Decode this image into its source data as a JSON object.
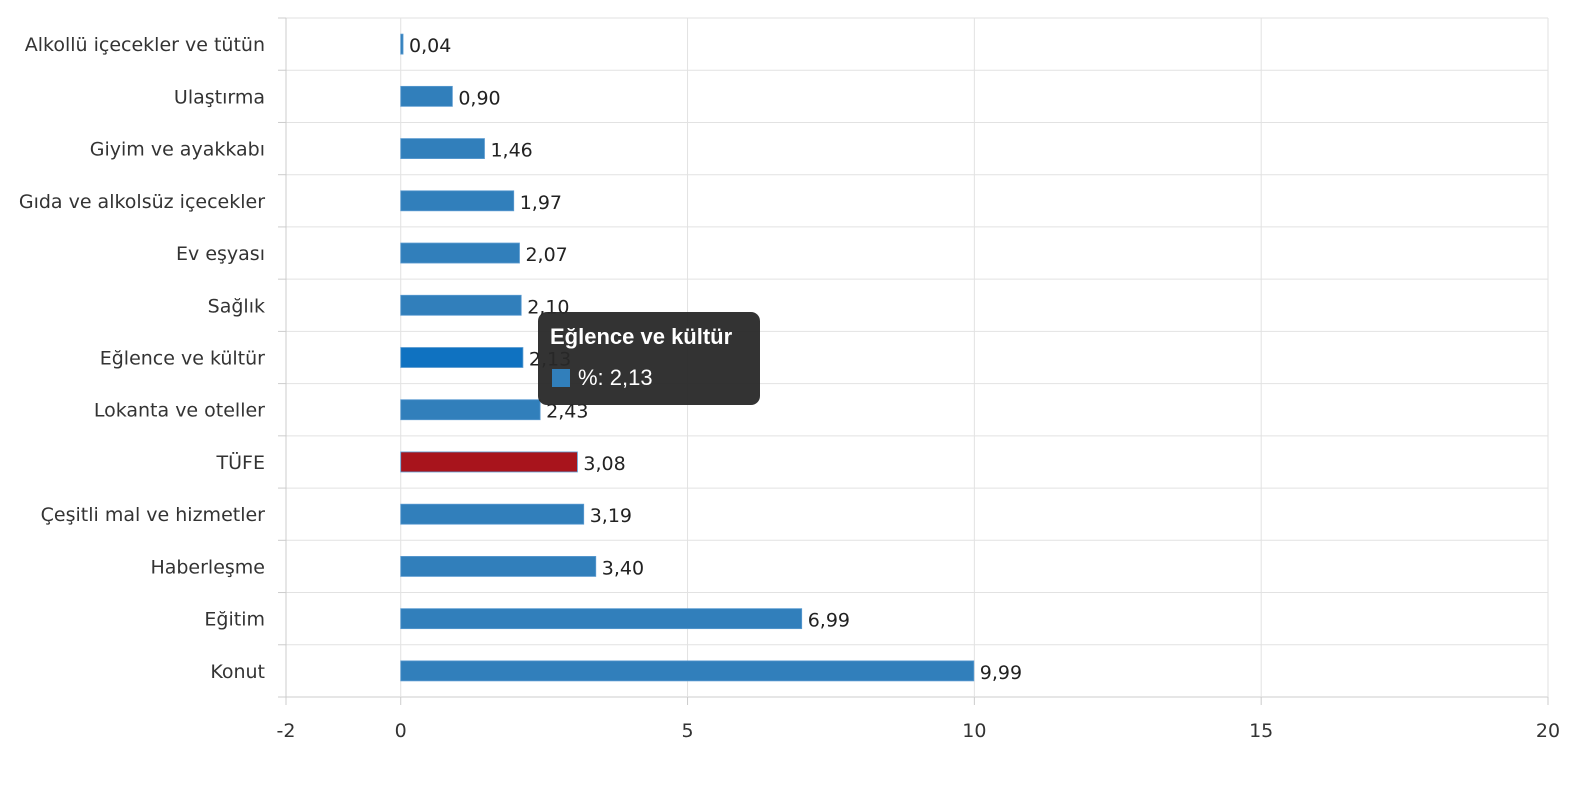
{
  "chart_data": {
    "type": "bar",
    "orientation": "horizontal",
    "categories": [
      "Alkollü içecekler ve tütün",
      "Ulaştırma",
      "Giyim ve ayakkabı",
      "Gıda ve alkolsüz içecekler",
      "Ev eşyası",
      "Sağlık",
      "Eğlence ve kültür",
      "Lokanta ve oteller",
      "TÜFE",
      "Çeşitli mal ve hizmetler",
      "Haberleşme",
      "Eğitim",
      "Konut"
    ],
    "values": [
      0.04,
      0.9,
      1.46,
      1.97,
      2.07,
      2.1,
      2.13,
      2.43,
      3.08,
      3.19,
      3.4,
      6.99,
      9.99
    ],
    "value_labels": [
      "0,04",
      "0,90",
      "1,46",
      "1,97",
      "2,07",
      "2,10",
      "2,13",
      "2,43",
      "3,08",
      "3,19",
      "3,40",
      "6,99",
      "9,99"
    ],
    "series_name": "%",
    "xlim": [
      -2,
      20
    ],
    "xticks": [
      -2,
      0,
      5,
      10,
      15,
      20
    ],
    "xtick_labels": [
      "-2",
      "0",
      "5",
      "10",
      "15",
      "20"
    ],
    "grid": true,
    "colors": {
      "bar": "#317fbb",
      "highlight": "#a8141c",
      "hover": "#0f72c1"
    },
    "highlight_index": 8,
    "hover_index": 6
  },
  "tooltip": {
    "title": "Eğlence ve kültür",
    "label": "%: 2,13",
    "swatch": "#317fbb"
  }
}
